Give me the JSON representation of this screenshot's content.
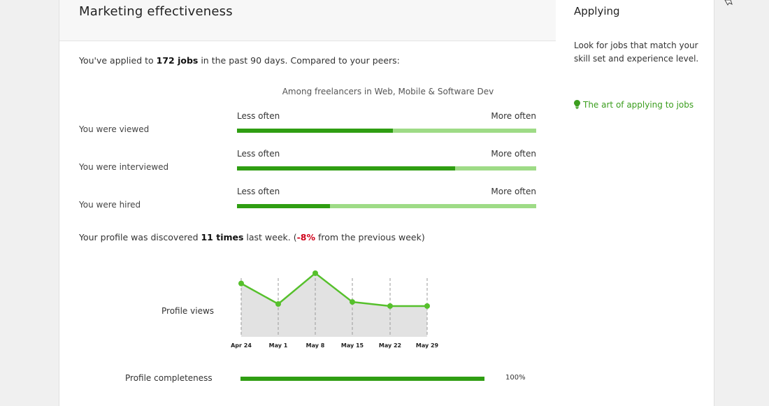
{
  "header": {
    "title": "Marketing effectiveness"
  },
  "intro": {
    "prefix": "You've applied to ",
    "count": "172 jobs",
    "suffix": " in the past 90 days. Compared to your peers:"
  },
  "comparison": {
    "group_label": "Among freelancers in Web, Mobile & Software Dev",
    "low_label": "Less often",
    "high_label": "More often",
    "metrics": [
      {
        "label": "You were viewed",
        "fraction": 0.52
      },
      {
        "label": "You were interviewed",
        "fraction": 0.73
      },
      {
        "label": "You were hired",
        "fraction": 0.31
      }
    ]
  },
  "discovery": {
    "prefix": "Your profile was discovered ",
    "count": "11 times",
    "middle": " last week. (",
    "change": "-8%",
    "suffix": " from the previous week)"
  },
  "chart_data": {
    "type": "area",
    "ylabel": "Profile views",
    "categories": [
      "Apr 24",
      "May 1",
      "May 8",
      "May 15",
      "May 22",
      "May 29"
    ],
    "series": [
      {
        "values": [
          13,
          8,
          15.5,
          8.5,
          7.5,
          7.5
        ]
      }
    ],
    "ylim": [
      0,
      16
    ],
    "grid": "vertical-dashed",
    "colors": {
      "line": "#56c02c",
      "area": "#e2e2e2",
      "grid": "#9a9a9a"
    }
  },
  "completeness": {
    "label": "Profile completeness",
    "value_text": "100%",
    "fraction": 1.0
  },
  "sidebar": {
    "title": "Applying",
    "description": "Look for jobs that match your skill set and experience level.",
    "link_text": "The art of applying to jobs",
    "link_icon": "lightbulb-icon"
  },
  "colors": {
    "bar_dark": "#2f9e12",
    "bar_light": "#9edb86",
    "link": "#3b9e1e",
    "negative": "#d0021b"
  }
}
